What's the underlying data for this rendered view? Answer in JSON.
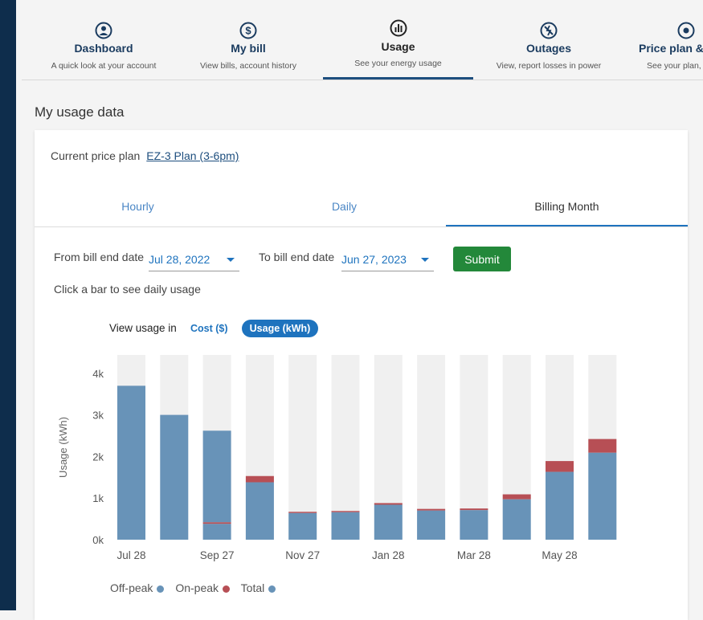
{
  "nav": {
    "items": [
      {
        "title": "Dashboard",
        "subtitle": "A quick look at your account",
        "icon": "user-icon"
      },
      {
        "title": "My bill",
        "subtitle": "View bills, account history",
        "icon": "dollar-icon"
      },
      {
        "title": "Usage",
        "subtitle": "See your energy usage",
        "icon": "bar-chart-icon"
      },
      {
        "title": "Outages",
        "subtitle": "View, report losses in power",
        "icon": "outage-icon"
      },
      {
        "title": "Price plan &",
        "subtitle": "See your plan,",
        "icon": "sun-icon"
      }
    ],
    "active": "Usage"
  },
  "page": {
    "title": "My usage data"
  },
  "plan": {
    "label": "Current price plan",
    "link": "EZ-3 Plan (3-6pm)"
  },
  "tabs": {
    "hourly": "Hourly",
    "daily": "Daily",
    "billing": "Billing Month",
    "active": "Billing Month"
  },
  "filters": {
    "from_label": "From bill end date",
    "from_value": "Jul 28, 2022",
    "to_label": "To bill end date",
    "to_value": "Jun 27, 2023",
    "submit": "Submit"
  },
  "hint": "Click a bar to see daily usage",
  "view": {
    "label": "View usage in",
    "cost": "Cost ($)",
    "usage": "Usage (kWh)"
  },
  "legend": {
    "offpeak": "Off-peak",
    "onpeak": "On-peak",
    "total": "Total"
  },
  "colors": {
    "offpeak": "#6893b8",
    "onpeak": "#b74f55",
    "total": "#6893b8",
    "background_bar": "#f0f0f0"
  },
  "chart_data": {
    "type": "bar",
    "stacked": true,
    "ylabel": "Usage (kWh)",
    "yticks": [
      "0k",
      "1k",
      "2k",
      "3k",
      "4k"
    ],
    "ylim": [
      0,
      4400
    ],
    "xtick_labels": [
      "Jul 28",
      "Sep 27",
      "Nov 27",
      "Jan 28",
      "Mar 28",
      "May 28"
    ],
    "xtick_positions": [
      0,
      2,
      4,
      6,
      8,
      10
    ],
    "bar_count": 12,
    "series": [
      {
        "name": "Off-peak",
        "values": [
          3700,
          3000,
          380,
          1380,
          640,
          660,
          840,
          700,
          710,
          970,
          1630,
          2090
        ]
      },
      {
        "name": "On-peak",
        "values": [
          0,
          0,
          40,
          150,
          30,
          30,
          40,
          40,
          40,
          120,
          260,
          330
        ]
      }
    ],
    "total_labeled_offpeak_third": 2620
  }
}
